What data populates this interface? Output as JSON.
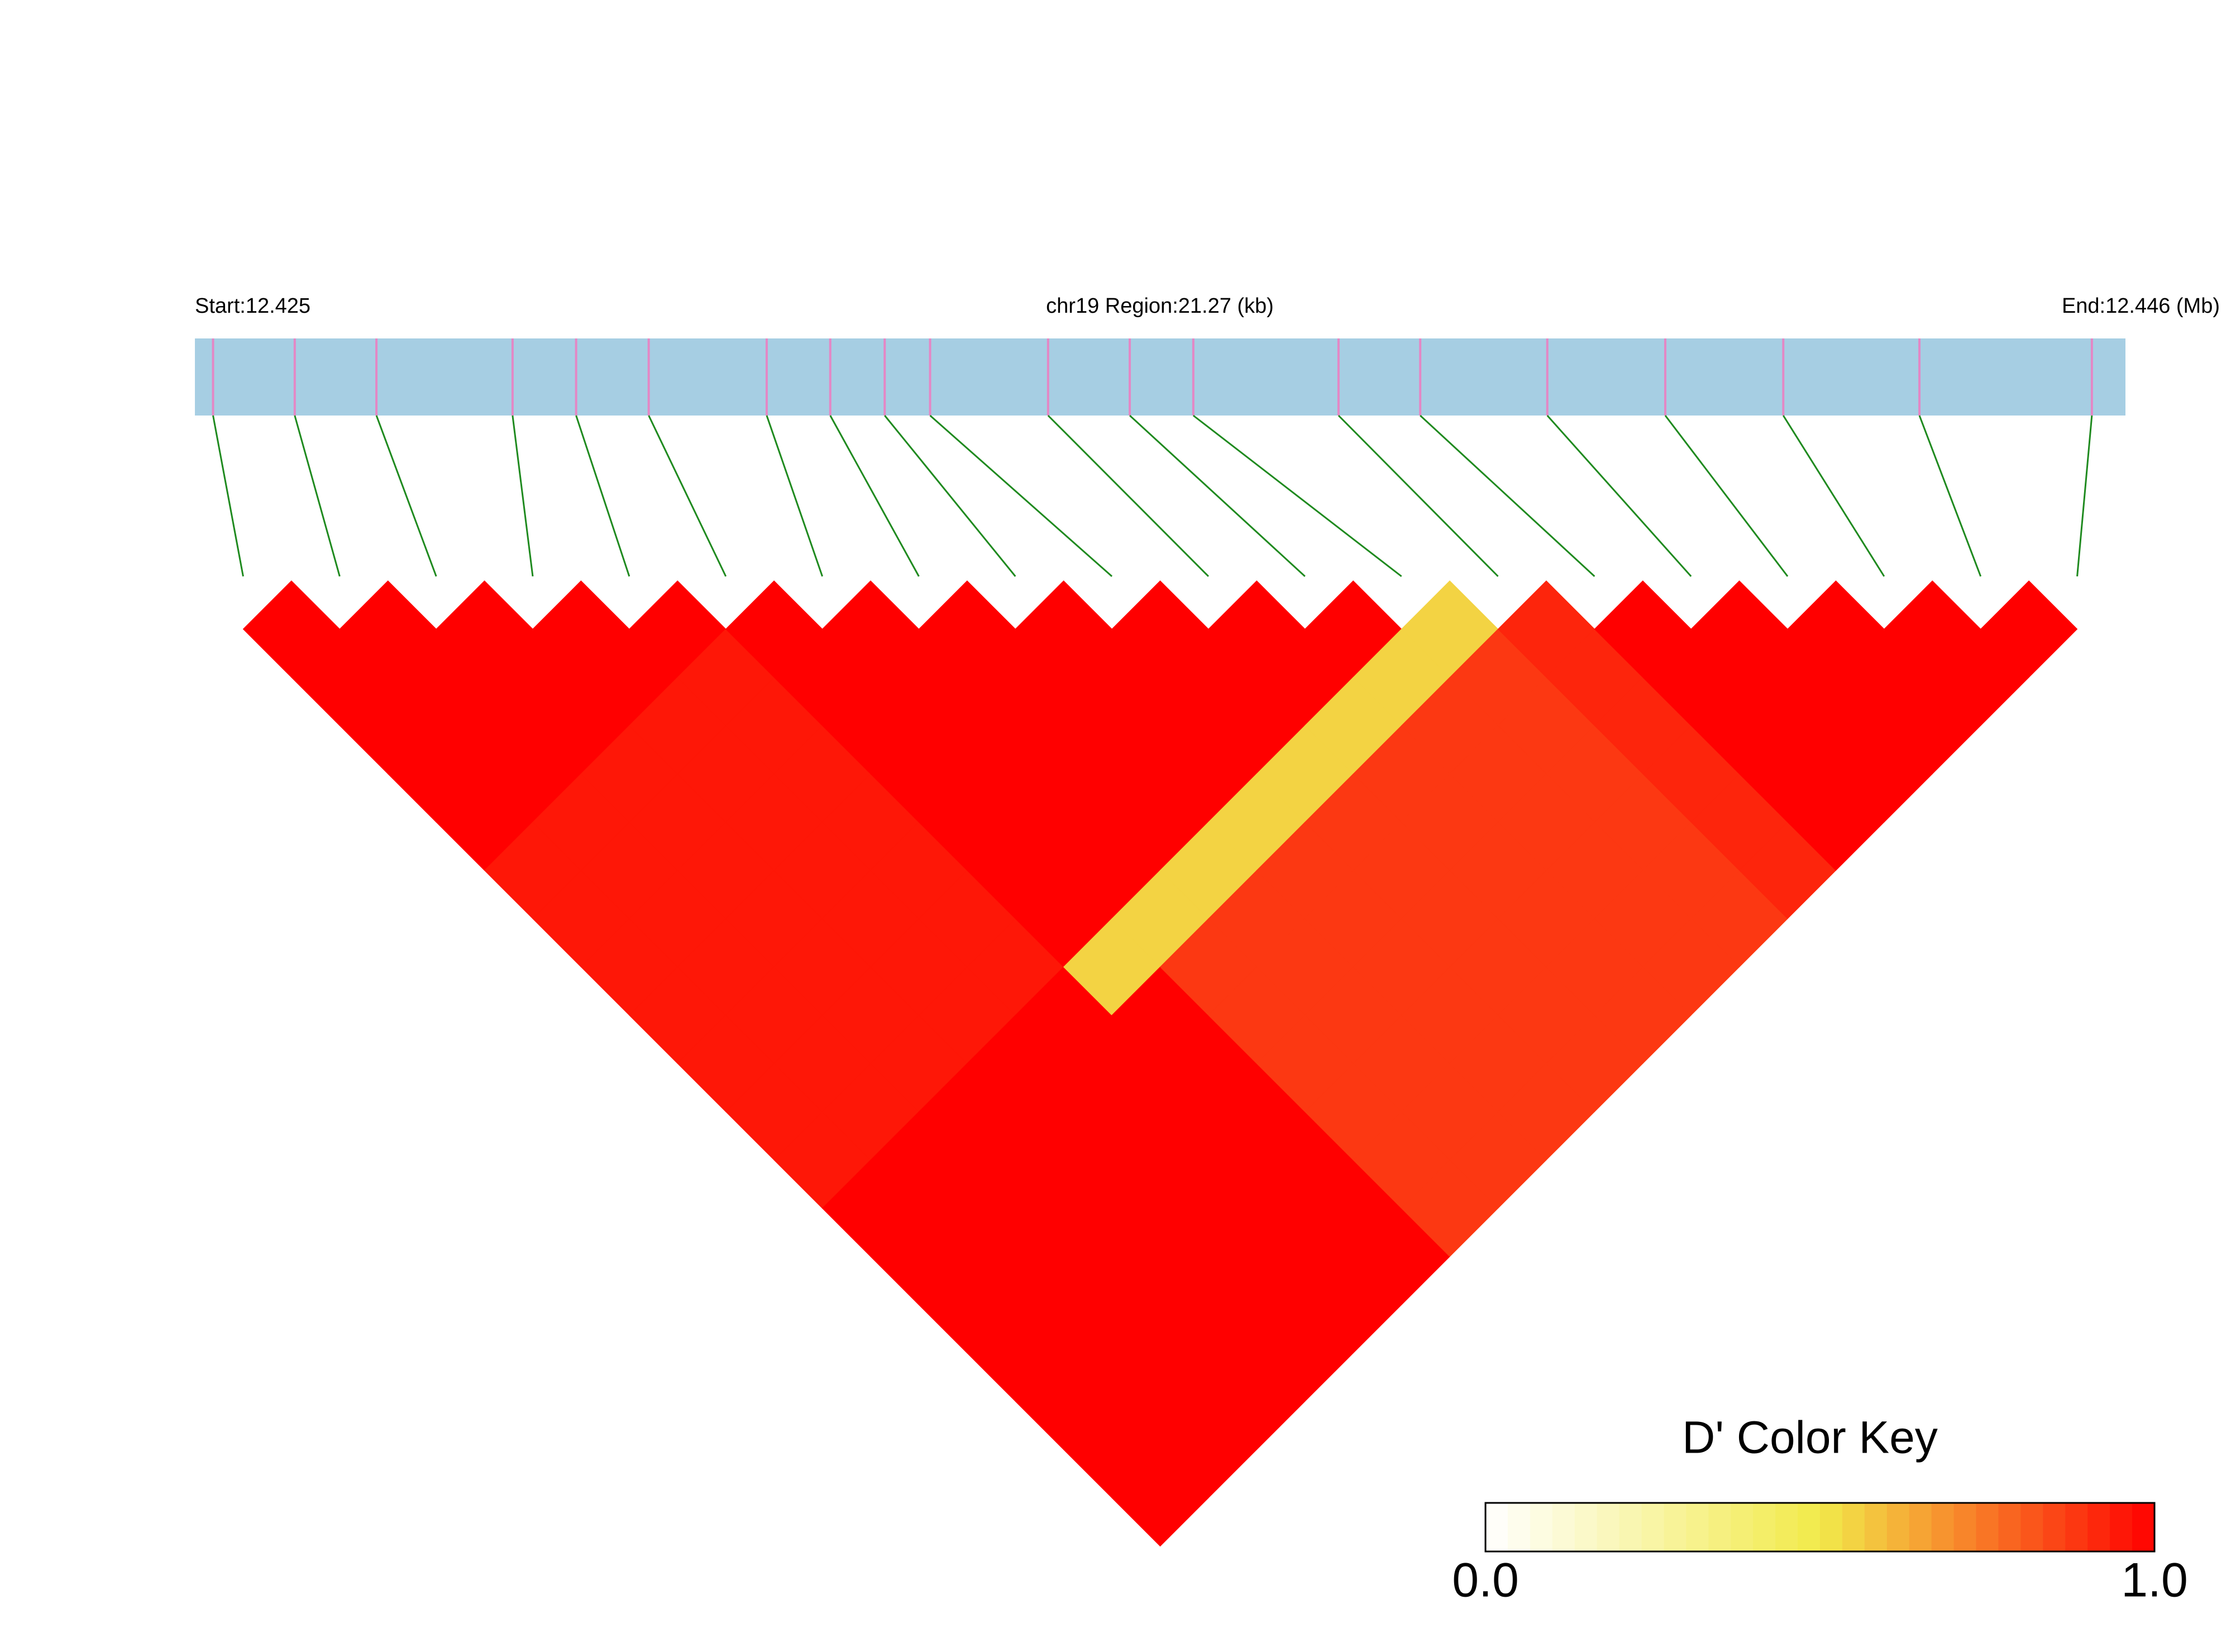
{
  "chart_data": {
    "type": "ld_heatmap",
    "start_label": "Start:12.425",
    "region_label": "chr19 Region:21.27 (kb)",
    "end_label": "End:12.446 (Mb)",
    "xlim": [
      0,
      21.27
    ],
    "snp_positions": [
      0.2,
      1.1,
      2.0,
      3.5,
      4.2,
      5.0,
      6.3,
      7.0,
      7.6,
      8.1,
      9.4,
      10.3,
      11.0,
      12.6,
      13.5,
      14.9,
      16.2,
      17.5,
      19.0,
      20.9
    ],
    "matrix": [
      [
        1
      ],
      [
        1,
        1
      ],
      [
        1,
        1,
        1
      ],
      [
        1,
        1,
        1,
        1
      ],
      [
        1,
        1,
        1,
        1,
        1
      ],
      [
        0.95,
        0.95,
        0.95,
        0.95,
        0.95,
        1
      ],
      [
        0.95,
        0.95,
        0.95,
        0.95,
        0.95,
        1,
        1
      ],
      [
        0.95,
        0.95,
        0.95,
        0.95,
        0.95,
        1,
        1,
        1
      ],
      [
        0.95,
        0.95,
        0.95,
        0.95,
        0.95,
        1,
        1,
        1,
        1
      ],
      [
        0.95,
        0.95,
        0.95,
        0.95,
        0.95,
        1,
        1,
        1,
        1,
        1
      ],
      [
        0.95,
        0.95,
        0.95,
        0.95,
        0.95,
        1,
        1,
        1,
        1,
        1,
        1
      ],
      [
        0.95,
        0.95,
        0.95,
        0.95,
        0.95,
        1,
        1,
        1,
        1,
        1,
        1,
        1
      ],
      [
        1,
        1,
        1,
        1,
        1,
        0.55,
        0.55,
        0.55,
        0.55,
        0.55,
        0.55,
        0.55,
        0.55
      ],
      [
        1,
        1,
        1,
        1,
        1,
        1,
        0.88,
        0.88,
        0.88,
        0.88,
        0.88,
        0.88,
        0.88,
        0.92
      ],
      [
        1,
        1,
        1,
        1,
        1,
        1,
        0.88,
        0.88,
        0.88,
        0.88,
        0.88,
        0.88,
        0.88,
        0.92,
        1
      ],
      [
        1,
        1,
        1,
        1,
        1,
        1,
        0.88,
        0.88,
        0.88,
        0.88,
        0.88,
        0.88,
        0.88,
        0.92,
        1,
        1
      ],
      [
        1,
        1,
        1,
        1,
        1,
        1,
        0.88,
        0.88,
        0.88,
        0.88,
        0.88,
        0.88,
        0.88,
        0.92,
        1,
        1,
        1
      ],
      [
        1,
        1,
        1,
        1,
        1,
        1,
        0.88,
        0.88,
        0.88,
        0.88,
        0.88,
        0.88,
        0.88,
        0.92,
        1,
        1,
        1,
        1
      ],
      [
        1,
        1,
        1,
        1,
        1,
        1,
        0.88,
        0.88,
        0.88,
        0.88,
        0.88,
        0.88,
        0.88,
        0.92,
        1,
        1,
        1,
        1,
        1
      ]
    ],
    "key_title": "D' Color Key",
    "key_colors": [
      "#ffffff",
      "#f2ea4a",
      "#ff0000"
    ],
    "key_lim": [
      0,
      1
    ],
    "key_ticks": [
      {
        "value": 0,
        "label": "0.0"
      },
      {
        "value": 1,
        "label": "1.0"
      }
    ],
    "track_color": "#a6cee3",
    "snp_color": "#e487c5",
    "link_color": "#1f8a1f"
  }
}
